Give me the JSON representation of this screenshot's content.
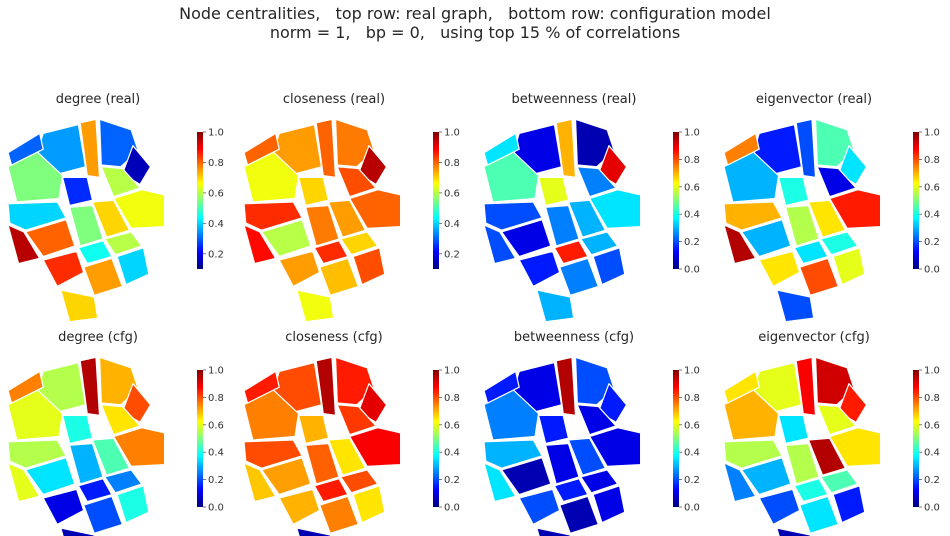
{
  "title_lines": [
    "Node centralities,   top row: real graph,   bottom row: configuration model",
    "norm = 1,   bp = 0,   using top 15 % of correlations"
  ],
  "colorscale": {
    "name": "jet",
    "stops": [
      "#00007f",
      "#0000ff",
      "#007fff",
      "#00ffff",
      "#7fff7f",
      "#ffff00",
      "#ff7f00",
      "#ff0000",
      "#7f0000"
    ]
  },
  "chart_data": [
    {
      "type": "heatmap",
      "title": "degree (real)",
      "colorbar_ticks": [
        "0.2",
        "0.4",
        "0.6",
        "0.8",
        "1.0"
      ],
      "vmin": 0.1,
      "vmax": 1.0,
      "regions": [
        0.35,
        0.75,
        0.3,
        0.15,
        0.55,
        0.6,
        0.25,
        0.4,
        0.65,
        0.7,
        0.8,
        0.55,
        0.45,
        0.95,
        0.6,
        0.85,
        0.75,
        0.4,
        0.7,
        0.3
      ]
    },
    {
      "type": "heatmap",
      "title": "closeness (real)",
      "colorbar_ticks": [
        "0.2",
        "0.4",
        "0.6",
        "0.8",
        "1.0"
      ],
      "vmin": 0.1,
      "vmax": 1.0,
      "regions": [
        0.75,
        0.8,
        0.78,
        0.95,
        0.65,
        0.82,
        0.7,
        0.85,
        0.8,
        0.75,
        0.6,
        0.78,
        0.85,
        0.88,
        0.7,
        0.75,
        0.72,
        0.82,
        0.65,
        0.8
      ]
    },
    {
      "type": "heatmap",
      "title": "betweenness (real)",
      "colorbar_ticks": [
        "0.0",
        "0.2",
        "0.4",
        "0.6",
        "0.8",
        "1.0"
      ],
      "vmin": 0.0,
      "vmax": 1.0,
      "regions": [
        0.1,
        0.7,
        0.05,
        0.9,
        0.45,
        0.25,
        0.6,
        0.2,
        0.35,
        0.3,
        0.1,
        0.25,
        0.85,
        0.2,
        0.3,
        0.15,
        0.25,
        0.2,
        0.3,
        0.35
      ]
    },
    {
      "type": "heatmap",
      "title": "eigenvector (real)",
      "colorbar_ticks": [
        "0.0",
        "0.2",
        "0.4",
        "0.6",
        "0.8",
        "1.0"
      ],
      "vmin": 0.0,
      "vmax": 1.0,
      "regions": [
        0.15,
        0.2,
        0.45,
        0.35,
        0.3,
        0.1,
        0.4,
        0.7,
        0.85,
        0.65,
        0.3,
        0.55,
        0.35,
        0.95,
        0.4,
        0.65,
        0.8,
        0.6,
        0.2,
        0.75
      ]
    },
    {
      "type": "heatmap",
      "title": "degree (cfg)",
      "colorbar_ticks": [
        "0.0",
        "0.2",
        "0.4",
        "0.6",
        "0.8",
        "1.0"
      ],
      "vmin": 0.0,
      "vmax": 1.0,
      "regions": [
        0.55,
        0.95,
        0.7,
        0.8,
        0.6,
        0.65,
        0.4,
        0.55,
        0.75,
        0.45,
        0.35,
        0.3,
        0.15,
        0.6,
        0.25,
        0.1,
        0.2,
        0.4,
        0.05,
        0.75
      ]
    },
    {
      "type": "heatmap",
      "title": "closeness (cfg)",
      "colorbar_ticks": [
        "0.0",
        "0.2",
        "0.4",
        "0.6",
        "0.8",
        "1.0"
      ],
      "vmin": 0.0,
      "vmax": 1.0,
      "regions": [
        0.8,
        0.95,
        0.85,
        0.9,
        0.75,
        0.82,
        0.7,
        0.8,
        0.88,
        0.65,
        0.72,
        0.78,
        0.85,
        0.68,
        0.8,
        0.7,
        0.75,
        0.65,
        0.05,
        0.85
      ]
    },
    {
      "type": "heatmap",
      "title": "betweenness (cfg)",
      "colorbar_ticks": [
        "0.0",
        "0.2",
        "0.4",
        "0.6",
        "0.8",
        "1.0"
      ],
      "vmin": 0.0,
      "vmax": 1.0,
      "regions": [
        0.1,
        0.95,
        0.2,
        0.15,
        0.25,
        0.1,
        0.15,
        0.3,
        0.1,
        0.2,
        0.05,
        0.1,
        0.15,
        0.35,
        0.1,
        0.2,
        0.05,
        0.1,
        0.05,
        0.15
      ]
    },
    {
      "type": "heatmap",
      "title": "eigenvector (cfg)",
      "colorbar_ticks": [
        "0.0",
        "0.2",
        "0.4",
        "0.6",
        "0.8",
        "1.0"
      ],
      "vmin": 0.0,
      "vmax": 1.0,
      "regions": [
        0.6,
        0.88,
        0.92,
        0.85,
        0.7,
        0.6,
        0.35,
        0.55,
        0.65,
        0.95,
        0.3,
        0.55,
        0.4,
        0.25,
        0.45,
        0.2,
        0.35,
        0.15,
        0.05,
        0.65
      ]
    }
  ]
}
